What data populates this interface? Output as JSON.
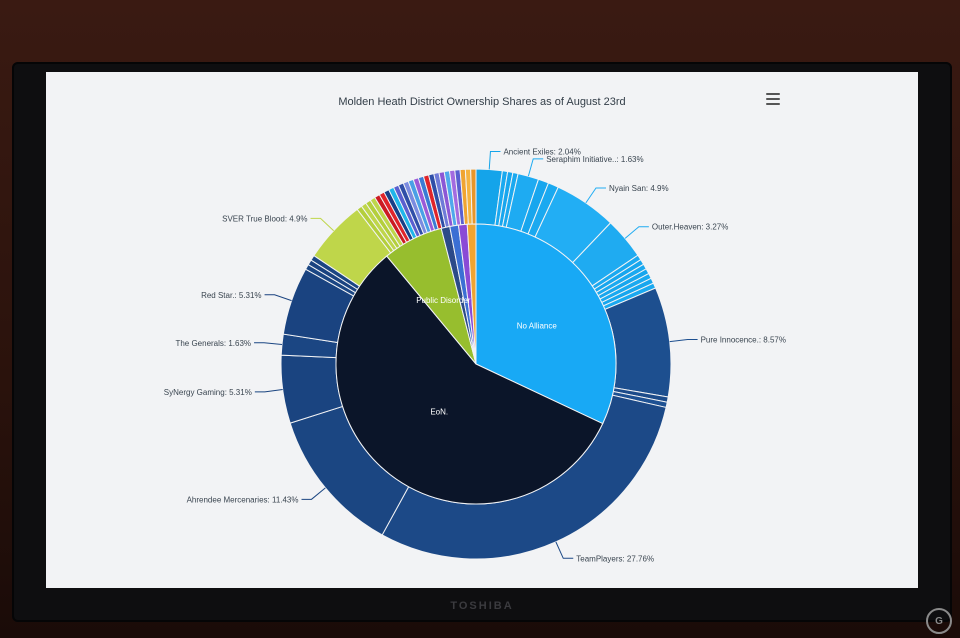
{
  "menu_icon": "hamburger-menu-icon",
  "brand": "TOSHIBA",
  "watermark": "G",
  "chart_data": {
    "type": "pie",
    "variant": "donut-with-inner-pie",
    "title": "Molden Heath District Ownership Shares as of August 23rd",
    "inner_series": [
      {
        "name": "EoN.",
        "value": 57,
        "color": "#0b1529"
      },
      {
        "name": "Public Disorder",
        "value": 7,
        "color": "#97be2e"
      },
      {
        "name": "",
        "value": 1,
        "color": "#2c4a88"
      },
      {
        "name": "",
        "value": 1,
        "color": "#3b6fd4"
      },
      {
        "name": "",
        "value": 1,
        "color": "#8a4ad6"
      },
      {
        "name": "",
        "value": 1,
        "color": "#f0a431"
      },
      {
        "name": "No Alliance",
        "value": 32,
        "color": "#18a9f5"
      }
    ],
    "outer_series": [
      {
        "name": "Ancient Exiles",
        "value": 2.04,
        "labelled": true,
        "color": "#14a4ea"
      },
      {
        "name": "",
        "value": 0.41,
        "labelled": false,
        "color": "#1aa9f0"
      },
      {
        "name": "",
        "value": 0.41,
        "labelled": false,
        "color": "#17a6ee"
      },
      {
        "name": "",
        "value": 0.41,
        "labelled": false,
        "color": "#1aa9f0"
      },
      {
        "name": "Seraphim Initiative..",
        "value": 1.63,
        "labelled": true,
        "color": "#1eabf2"
      },
      {
        "name": "",
        "value": 0.82,
        "labelled": false,
        "color": "#17a6ee"
      },
      {
        "name": "",
        "value": 0.82,
        "labelled": false,
        "color": "#1aa9f0"
      },
      {
        "name": "Nyain San",
        "value": 4.9,
        "labelled": true,
        "color": "#22aef4"
      },
      {
        "name": "Outer.Heaven",
        "value": 3.27,
        "labelled": true,
        "color": "#1fabf1"
      },
      {
        "name": "",
        "value": 0.41,
        "labelled": false,
        "color": "#1aa9f0"
      },
      {
        "name": "",
        "value": 0.41,
        "labelled": false,
        "color": "#17a6ee"
      },
      {
        "name": "",
        "value": 0.41,
        "labelled": false,
        "color": "#1aa9f0"
      },
      {
        "name": "",
        "value": 0.41,
        "labelled": false,
        "color": "#17a6ee"
      },
      {
        "name": "",
        "value": 0.41,
        "labelled": false,
        "color": "#1aa9f0"
      },
      {
        "name": "",
        "value": 0.41,
        "labelled": false,
        "color": "#17a6ee"
      },
      {
        "name": "",
        "value": 0.41,
        "labelled": false,
        "color": "#1aa9f0"
      },
      {
        "name": "Pure Innocence.",
        "value": 8.57,
        "labelled": true,
        "color": "#1d4f8f"
      },
      {
        "name": "",
        "value": 0.41,
        "labelled": false,
        "color": "#1c4b8a"
      },
      {
        "name": "",
        "value": 0.41,
        "labelled": false,
        "color": "#1e5193"
      },
      {
        "name": "TeamPlayers",
        "value": 27.76,
        "labelled": true,
        "color": "#1c4987"
      },
      {
        "name": "Ahrendee Mercenaries",
        "value": 11.43,
        "labelled": true,
        "color": "#1b4682"
      },
      {
        "name": "SyNergy Gaming",
        "value": 5.31,
        "labelled": true,
        "color": "#1a4480"
      },
      {
        "name": "The Generals",
        "value": 1.63,
        "labelled": true,
        "color": "#1b4683"
      },
      {
        "name": "Red Star.",
        "value": 5.31,
        "labelled": true,
        "color": "#1a4380"
      },
      {
        "name": "",
        "value": 0.41,
        "labelled": false,
        "color": "#1b4683"
      },
      {
        "name": "",
        "value": 0.41,
        "labelled": false,
        "color": "#1a4380"
      },
      {
        "name": "",
        "value": 0.41,
        "labelled": false,
        "color": "#1b4683"
      },
      {
        "name": "SVER True Blood",
        "value": 4.9,
        "labelled": true,
        "color": "#bfd64a"
      },
      {
        "name": "",
        "value": 0.41,
        "labelled": false,
        "color": "#b4cf3c"
      },
      {
        "name": "",
        "value": 0.41,
        "labelled": false,
        "color": "#bfd64a"
      },
      {
        "name": "",
        "value": 0.41,
        "labelled": false,
        "color": "#b4cf3c"
      },
      {
        "name": "",
        "value": 0.41,
        "labelled": false,
        "color": "#bfd64a"
      },
      {
        "name": "",
        "value": 0.41,
        "labelled": false,
        "color": "#cc1b22"
      },
      {
        "name": "",
        "value": 0.41,
        "labelled": false,
        "color": "#e0242a"
      },
      {
        "name": "",
        "value": 0.41,
        "labelled": false,
        "color": "#1a3f87"
      },
      {
        "name": "",
        "value": 0.41,
        "labelled": false,
        "color": "#1fb5ea"
      },
      {
        "name": "",
        "value": 0.41,
        "labelled": false,
        "color": "#5a5fd0"
      },
      {
        "name": "",
        "value": 0.41,
        "labelled": false,
        "color": "#2f4ea8"
      },
      {
        "name": "",
        "value": 0.41,
        "labelled": false,
        "color": "#7b8be0"
      },
      {
        "name": "",
        "value": 0.41,
        "labelled": false,
        "color": "#4aa0e6"
      },
      {
        "name": "",
        "value": 0.41,
        "labelled": false,
        "color": "#9b5ad8"
      },
      {
        "name": "",
        "value": 0.41,
        "labelled": false,
        "color": "#3a7bd5"
      },
      {
        "name": "",
        "value": 0.41,
        "labelled": false,
        "color": "#e0242a"
      },
      {
        "name": "",
        "value": 0.41,
        "labelled": false,
        "color": "#2f4ea8"
      },
      {
        "name": "",
        "value": 0.41,
        "labelled": false,
        "color": "#6e7ad8"
      },
      {
        "name": "",
        "value": 0.41,
        "labelled": false,
        "color": "#8b57d6"
      },
      {
        "name": "",
        "value": 0.41,
        "labelled": false,
        "color": "#4fa8ec"
      },
      {
        "name": "",
        "value": 0.41,
        "labelled": false,
        "color": "#a36be0"
      },
      {
        "name": "",
        "value": 0.41,
        "labelled": false,
        "color": "#5a5fd0"
      },
      {
        "name": "",
        "value": 0.41,
        "labelled": false,
        "color": "#f0a431"
      },
      {
        "name": "",
        "value": 0.41,
        "labelled": false,
        "color": "#f5b340"
      },
      {
        "name": "",
        "value": 0.41,
        "labelled": false,
        "color": "#e8962a"
      }
    ]
  }
}
